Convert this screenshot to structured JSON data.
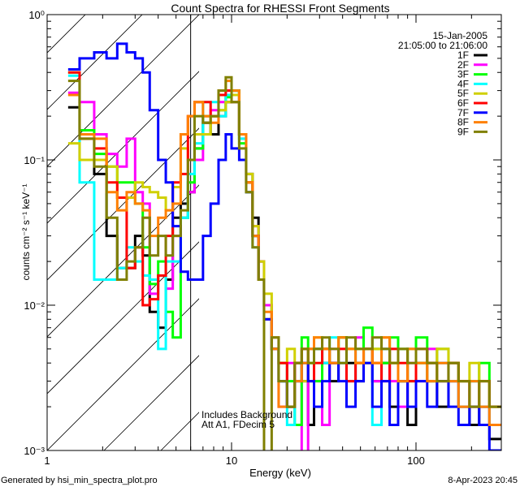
{
  "chart_data": {
    "type": "line",
    "title": "Count Spectra for RHESSI Front Segments",
    "xlabel": "Energy (keV)",
    "ylabel": "counts cm⁻² s⁻¹ keV⁻¹",
    "xscale": "log",
    "yscale": "log",
    "xlim": [
      1,
      290
    ],
    "ylim": [
      0.001,
      1
    ],
    "x_tick_labels": [
      {
        "v": 1,
        "t": "1"
      },
      {
        "v": 10,
        "t": "10"
      },
      {
        "v": 100,
        "t": "100"
      }
    ],
    "y_tick_labels": [
      {
        "v": 1,
        "t": "10⁰"
      },
      {
        "v": 0.1,
        "t": "10⁻¹"
      },
      {
        "v": 0.01,
        "t": "10⁻²"
      },
      {
        "v": 0.001,
        "t": "10⁻³"
      }
    ],
    "date": "15-Jan-2005",
    "time_range": "21:05:00 to 21:06:00",
    "annotations": [
      "Includes Background",
      "Att A1, FDecim 5"
    ],
    "vertical_line_kev": 6,
    "hatched_region_kev": [
      1,
      6
    ],
    "legend_position": "top-right",
    "energy_edges": [
      1.3,
      1.5,
      1.8,
      2.1,
      2.4,
      2.7,
      3.0,
      3.3,
      3.6,
      4.0,
      4.4,
      4.8,
      5.3,
      5.8,
      6.3,
      7,
      7.7,
      8.5,
      9.3,
      10,
      11,
      12,
      13,
      14,
      15,
      16.5,
      18,
      20,
      22,
      24,
      26,
      28,
      31,
      34,
      38,
      42,
      47,
      52,
      58,
      65,
      72,
      80,
      90,
      100,
      115,
      130,
      150,
      170,
      195,
      220,
      250,
      290
    ],
    "series": [
      {
        "name": "1F",
        "color": "#000000",
        "values": [
          0.23,
          0.1,
          0.08,
          0.03,
          0.018,
          0.018,
          0.03,
          0.022,
          0.009,
          0.007,
          0.015,
          0.04,
          0.05,
          0.06,
          0.12,
          0.18,
          0.15,
          0.2,
          0.25,
          0.3,
          0.15,
          0.08,
          0.04,
          0.02,
          0.01,
          0.005,
          0.003,
          0.002,
          0.004,
          0.003,
          0.0015,
          0.005,
          0.004,
          0.003,
          0.006,
          0.004,
          0.003,
          0.005,
          0.003,
          0.004,
          0.002,
          0.003,
          0.0015,
          0.004,
          0.003,
          0.002,
          0.003,
          0.002,
          0.0015,
          0.002,
          0.0012
        ]
      },
      {
        "name": "2F",
        "color": "#ff00ff",
        "values": [
          0.29,
          0.25,
          0.15,
          0.11,
          0.09,
          0.14,
          0.06,
          0.05,
          0.012,
          0.016,
          0.013,
          0.03,
          0.04,
          0.06,
          0.1,
          0.2,
          0.22,
          0.25,
          0.3,
          0.28,
          0.14,
          0.07,
          0.035,
          0.02,
          0.01,
          0.006,
          0.002,
          0.004,
          0.003,
          0.0009,
          0.005,
          0.003,
          0.0015,
          0.005,
          0.004,
          0.003,
          0.006,
          0.004,
          0.003,
          0.005,
          0.003,
          0.002,
          0.004,
          0.003,
          0.005,
          0.004,
          0.003,
          0.002,
          0.003,
          0.002,
          0.0015
        ]
      },
      {
        "name": "3F",
        "color": "#00ff00",
        "values": [
          0.4,
          0.16,
          0.11,
          0.09,
          0.07,
          0.07,
          0.05,
          0.025,
          0.014,
          0.02,
          0.009,
          0.006,
          0.04,
          0.07,
          0.12,
          0.2,
          0.2,
          0.22,
          0.27,
          0.3,
          0.13,
          0.07,
          0.03,
          0.015,
          0.008,
          0.005,
          0.004,
          0.003,
          0.0015,
          0.006,
          0.004,
          0.003,
          0.005,
          0.004,
          0.006,
          0.005,
          0.004,
          0.007,
          0.005,
          0.004,
          0.006,
          0.005,
          0.003,
          0.006,
          0.004,
          0.005,
          0.004,
          0.003,
          0.003,
          0.004,
          0.002
        ]
      },
      {
        "name": "4F",
        "color": "#00ffff",
        "values": [
          0.38,
          0.07,
          0.015,
          0.015,
          0.018,
          0.025,
          0.02,
          0.016,
          0.015,
          0.005,
          0.02,
          0.02,
          0.04,
          0.08,
          0.13,
          0.25,
          0.25,
          0.2,
          0.28,
          0.25,
          0.14,
          0.06,
          0.025,
          0.015,
          0.008,
          0.005,
          0.003,
          0.0015,
          0.003,
          0.004,
          0.003,
          0.005,
          0.004,
          0.006,
          0.004,
          0.003,
          0.005,
          0.004,
          0.0015,
          0.005,
          0.004,
          0.003,
          0.005,
          0.004,
          0.003,
          0.004,
          0.003,
          0.002,
          0.003,
          0.002,
          0.0015
        ]
      },
      {
        "name": "5F",
        "color": "#d0d000",
        "values": [
          0.13,
          0.1,
          0.1,
          0.09,
          0.055,
          0.055,
          0.07,
          0.065,
          0.06,
          0.055,
          0.045,
          0.065,
          0.12,
          0.1,
          0.15,
          0.15,
          0.2,
          0.22,
          0.25,
          0.28,
          0.15,
          0.08,
          0.035,
          0.02,
          0.012,
          0.006,
          0.004,
          0.005,
          0.004,
          0.003,
          0.005,
          0.006,
          0.005,
          0.004,
          0.006,
          0.005,
          0.005,
          0.004,
          0.005,
          0.006,
          0.004,
          0.003,
          0.005,
          0.004,
          0.003,
          0.005,
          0.004,
          0.003,
          0.004,
          0.003,
          0.002
        ]
      },
      {
        "name": "6F",
        "color": "#ff0000",
        "values": [
          0.4,
          0.14,
          0.12,
          0.07,
          0.055,
          0.018,
          0.025,
          0.01,
          0.011,
          0.016,
          0.03,
          0.07,
          0.08,
          0.2,
          0.25,
          0.25,
          0.2,
          0.28,
          0.3,
          0.25,
          0.15,
          0.07,
          0.03,
          0.015,
          0.008,
          0.005,
          0.004,
          0.002,
          0.004,
          0.005,
          0.003,
          0.004,
          0.005,
          0.004,
          0.005,
          0.003,
          0.004,
          0.005,
          0.004,
          0.003,
          0.005,
          0.004,
          0.003,
          0.005,
          0.004,
          0.003,
          0.004,
          0.003,
          0.002,
          0.003,
          0.002
        ]
      },
      {
        "name": "7F",
        "color": "#0000ff",
        "values": [
          0.42,
          0.5,
          0.55,
          0.5,
          0.63,
          0.55,
          0.5,
          0.4,
          0.22,
          0.1,
          0.07,
          0.035,
          0.017,
          0.015,
          0.015,
          0.03,
          0.05,
          0.1,
          0.15,
          0.12,
          0.1,
          0.06,
          0.03,
          0.015,
          0.008,
          0.005,
          0.003,
          0.002,
          0.003,
          0.004,
          0.003,
          0.002,
          0.003,
          0.004,
          0.003,
          0.002,
          0.003,
          0.004,
          0.002,
          0.003,
          0.0015,
          0.003,
          0.002,
          0.003,
          0.002,
          0.003,
          0.002,
          0.0015,
          0.002,
          0.0015,
          0.001
        ]
      },
      {
        "name": "8F",
        "color": "#ff8000",
        "values": [
          0.28,
          0.15,
          0.14,
          0.06,
          0.045,
          0.06,
          0.05,
          0.045,
          0.03,
          0.04,
          0.045,
          0.05,
          0.15,
          0.2,
          0.25,
          0.2,
          0.18,
          0.3,
          0.35,
          0.3,
          0.15,
          0.07,
          0.03,
          0.015,
          0.009,
          0.005,
          0.002,
          0.002,
          0.003,
          0.004,
          0.005,
          0.006,
          0.005,
          0.004,
          0.006,
          0.005,
          0.004,
          0.005,
          0.004,
          0.006,
          0.004,
          0.003,
          0.005,
          0.004,
          0.003,
          0.004,
          0.003,
          0.002,
          0.003,
          0.002,
          0.0015
        ]
      },
      {
        "name": "9F",
        "color": "#808000",
        "values": [
          0.35,
          0.14,
          0.09,
          0.04,
          0.015,
          0.02,
          0.025,
          0.04,
          0.022,
          0.03,
          0.022,
          0.03,
          0.045,
          0.1,
          0.2,
          0.18,
          0.2,
          0.3,
          0.37,
          0.25,
          0.12,
          0.06,
          0.025,
          0.015,
          0.0009,
          0.006,
          0.003,
          0.002,
          0.004,
          0.005,
          0.004,
          0.005,
          0.006,
          0.005,
          0.004,
          0.006,
          0.005,
          0.005,
          0.006,
          0.005,
          0.004,
          0.005,
          0.004,
          0.005,
          0.004,
          0.003,
          0.004,
          0.003,
          0.002,
          0.003,
          0.002
        ]
      }
    ]
  },
  "footer": {
    "generated_by": "Generated by hsi_min_spectra_plot.pro",
    "timestamp": "8-Apr-2023 20:45"
  }
}
